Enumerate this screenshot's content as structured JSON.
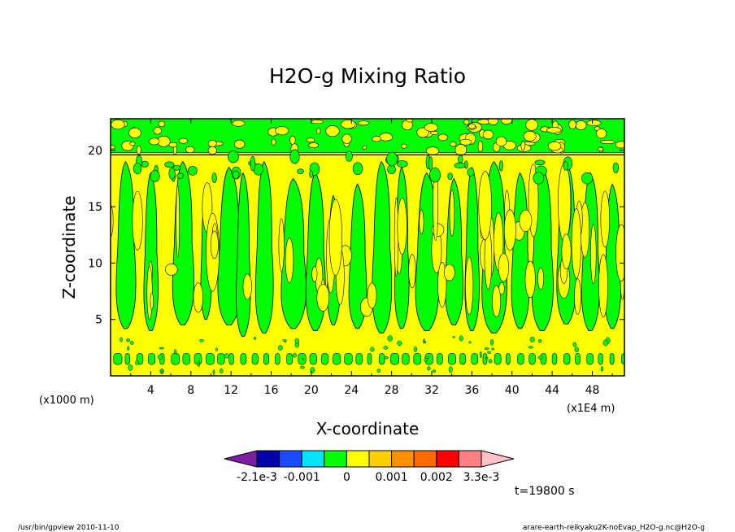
{
  "chart_data": {
    "type": "heatmap",
    "title": "H2O-g Mixing Ratio",
    "xlabel": "X-coordinate",
    "ylabel": "Z-coordinate",
    "x_unit_note": "(x1E4 m)",
    "y_unit_note": "(x1000 m)",
    "x_ticks": [
      "4",
      "8",
      "12",
      "16",
      "20",
      "24",
      "28",
      "32",
      "36",
      "40",
      "44",
      "48"
    ],
    "y_ticks": [
      "5",
      "10",
      "15",
      "20"
    ],
    "xlim": [
      0,
      51.2
    ],
    "ylim": [
      0,
      22.8
    ],
    "colorbar": {
      "labels": [
        "-2.1e-3",
        "-0.001",
        "0",
        "0.001",
        "0.002",
        "3.3e-3"
      ],
      "colors": [
        "#7a1fa2",
        "#0000aa",
        "#1c4bff",
        "#00e5ff",
        "#00ff00",
        "#ffff00",
        "#ffd000",
        "#ff9000",
        "#ff6a00",
        "#ff0000",
        "#ff8080",
        "#ffc0c8"
      ]
    },
    "fill_colors": {
      "background": "#ffff00",
      "anomaly": "#00ff00",
      "contour": "#000000"
    },
    "time_label": "t=19800 s"
  },
  "footer": {
    "left": "/usr/bin/gpview  2010-11-10",
    "right": "arare-earth-reikyaku2K-noEvap_H2O-g.nc@H2O-g"
  }
}
